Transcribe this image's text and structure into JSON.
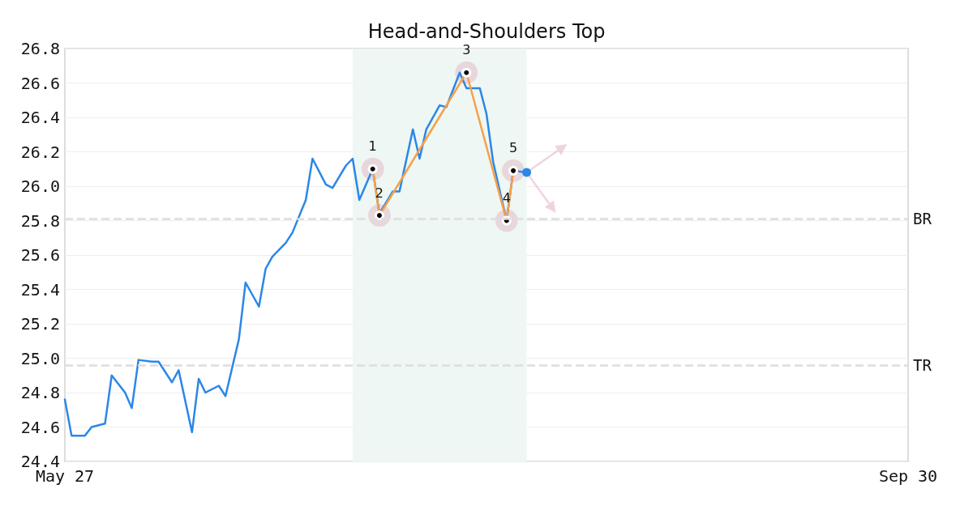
{
  "chart_data": {
    "type": "line",
    "title": "Head-and-Shoulders Top",
    "xlim": [
      "--05-27",
      "--09-30"
    ],
    "xticks": [
      {
        "value": "--05-27",
        "label": "May 27"
      },
      {
        "value": "--09-30",
        "label": "Sep 30"
      }
    ],
    "ylim": [
      24.4,
      26.8
    ],
    "yticks": [
      24.4,
      24.6,
      24.8,
      {
        "value": 25,
        "label": "25.0"
      },
      25.2,
      25.4,
      25.6,
      25.8,
      {
        "value": 26,
        "label": "26.0"
      },
      26.2,
      26.4,
      26.6,
      26.8
    ],
    "grid": "y",
    "series": [
      {
        "color": "#2b87e8",
        "marker": "none",
        "x": [
          "--05-27",
          "--05-28",
          "--05-30",
          "--05-31",
          "--06-02",
          "--06-03",
          "--06-05",
          "--06-06",
          "--06-07",
          "--06-09",
          "--06-10",
          "--06-12",
          "--06-13",
          "--06-15",
          "--06-16",
          "--06-17",
          "--06-19",
          "--06-20",
          "--06-22",
          "--06-23",
          "--06-25",
          "--06-26",
          "--06-27",
          "--06-29",
          "--06-30",
          "--07-02",
          "--07-03",
          "--07-05",
          "--07-06",
          "--07-08",
          "--07-09",
          "--07-10",
          "--07-12",
          "--07-13",
          "--07-15",
          "--07-16",
          "--07-18",
          "--07-19",
          "--07-20",
          "--07-22",
          "--07-23",
          "--07-25",
          "--07-26",
          "--07-28",
          "--07-29",
          "--07-30",
          "--08-01",
          "--08-02",
          "--08-04"
        ],
        "values": [
          24.76,
          24.55,
          24.55,
          24.6,
          24.62,
          24.9,
          24.8,
          24.71,
          24.99,
          24.98,
          24.98,
          24.86,
          24.93,
          24.57,
          24.88,
          24.8,
          24.84,
          24.78,
          25.11,
          25.44,
          25.3,
          25.52,
          25.59,
          25.67,
          25.73,
          25.92,
          26.16,
          26.01,
          25.99,
          26.12,
          26.16,
          25.92,
          26.1,
          25.84,
          25.97,
          25.97,
          26.33,
          26.16,
          26.33,
          26.47,
          26.46,
          26.66,
          26.57,
          26.57,
          26.42,
          26.14,
          25.8,
          26.09,
          26.08
        ]
      },
      {
        "color": "#f7a04a",
        "marker": "circle",
        "x": [
          "--07-12",
          "--07-13",
          "--07-26",
          "--08-01",
          "--08-02"
        ],
        "values": [
          26.1,
          25.83,
          26.66,
          25.8,
          26.09
        ]
      }
    ],
    "annotations": [
      {
        "text": "1",
        "x": "--07-12",
        "y": 26.1
      },
      {
        "text": "2",
        "x": "--07-13",
        "y": 25.83
      },
      {
        "text": "3",
        "x": "--07-26",
        "y": 26.66
      },
      {
        "text": "4",
        "x": "--08-01",
        "y": 25.8
      },
      {
        "text": "5",
        "x": "--08-02",
        "y": 26.09
      }
    ],
    "ref_lines": [
      {
        "axis": "y",
        "value": 25.81,
        "label": "BR",
        "color": "#dddddd",
        "line_style": "dashed"
      },
      {
        "axis": "y",
        "value": 24.96,
        "label": "TR",
        "color": "#dddddd",
        "line_style": "dashed"
      }
    ],
    "bands": [
      {
        "axis": "x",
        "from": "--07-09",
        "to": "--08-04",
        "color": "#eef7f3"
      }
    ]
  }
}
